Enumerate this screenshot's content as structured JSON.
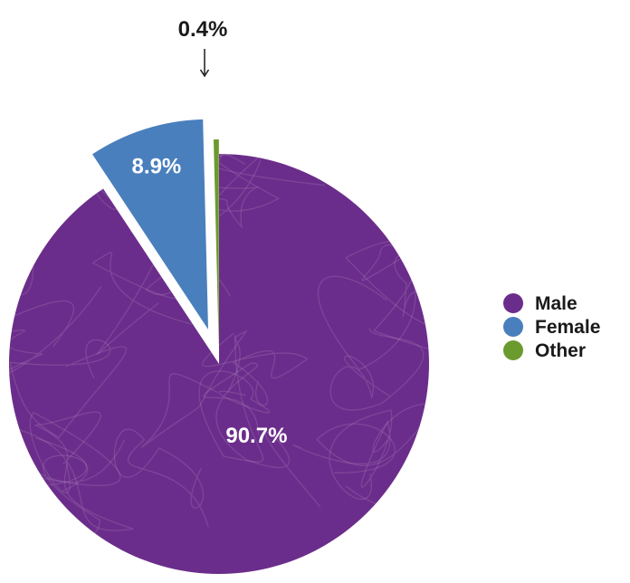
{
  "chart_data": {
    "type": "pie",
    "title": "",
    "categories": [
      "Male",
      "Female",
      "Other"
    ],
    "values": [
      90.7,
      8.9,
      0.4
    ],
    "labels": [
      "90.7%",
      "8.9%",
      "0.4%"
    ],
    "colors": [
      "#6b2d8b",
      "#4a7fbd",
      "#6b9a2f"
    ],
    "exploded": [
      "Female",
      "Other"
    ],
    "legend_position": "right"
  }
}
